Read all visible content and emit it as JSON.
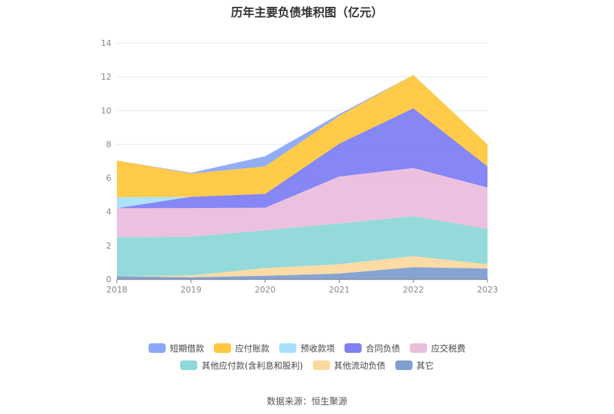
{
  "chart_data": {
    "type": "area",
    "stacked": true,
    "title": "历年主要负债堆积图（亿元）",
    "x": [
      "2018",
      "2019",
      "2020",
      "2021",
      "2022",
      "2023"
    ],
    "ylim": [
      0,
      14
    ],
    "yticks": [
      0,
      2,
      4,
      6,
      8,
      10,
      12,
      14
    ],
    "grid": true,
    "legend_position": "bottom",
    "series": [
      {
        "name": "其它",
        "color": "#7f9fd1",
        "values": [
          0.2,
          0.13,
          0.22,
          0.35,
          0.73,
          0.65
        ]
      },
      {
        "name": "其他流动负债",
        "color": "#fdd9a0",
        "values": [
          0.0,
          0.1,
          0.45,
          0.55,
          0.65,
          0.25
        ]
      },
      {
        "name": "其他应付款(含利息和股利)",
        "color": "#8fd8d8",
        "values": [
          2.3,
          2.3,
          2.25,
          2.42,
          2.37,
          2.1
        ]
      },
      {
        "name": "应交税费",
        "color": "#ebbedd",
        "values": [
          1.72,
          1.7,
          1.33,
          2.78,
          2.85,
          2.45
        ]
      },
      {
        "name": "合同负债",
        "color": "#8080f3",
        "values": [
          0.0,
          0.67,
          0.82,
          1.95,
          3.55,
          1.25
        ]
      },
      {
        "name": "预收款项",
        "color": "#a9e0fb",
        "values": [
          0.65,
          0.0,
          0.0,
          0.0,
          0.0,
          0.0
        ]
      },
      {
        "name": "应付账款",
        "color": "#ffc83f",
        "values": [
          2.18,
          1.37,
          1.63,
          1.65,
          1.97,
          1.3
        ]
      },
      {
        "name": "短期借款",
        "color": "#8ca9f6",
        "values": [
          0.0,
          0.05,
          0.6,
          0.1,
          0.0,
          0.0
        ]
      }
    ]
  },
  "legend_rows": [
    [
      "短期借款",
      "应付账款",
      "预收款项",
      "合同负债",
      "应交税费"
    ],
    [
      "其他应付款(含利息和股利)",
      "其他流动负债",
      "其它"
    ]
  ],
  "legend_colors": {
    "短期借款": "#8ca9f6",
    "应付账款": "#ffc83f",
    "预收款项": "#a9e0fb",
    "合同负债": "#8080f3",
    "应交税费": "#ebbedd",
    "其他应付款(含利息和股利)": "#8fd8d8",
    "其他流动负债": "#fdd9a0",
    "其它": "#7f9fd1"
  },
  "source": "数据来源：恒生聚源"
}
